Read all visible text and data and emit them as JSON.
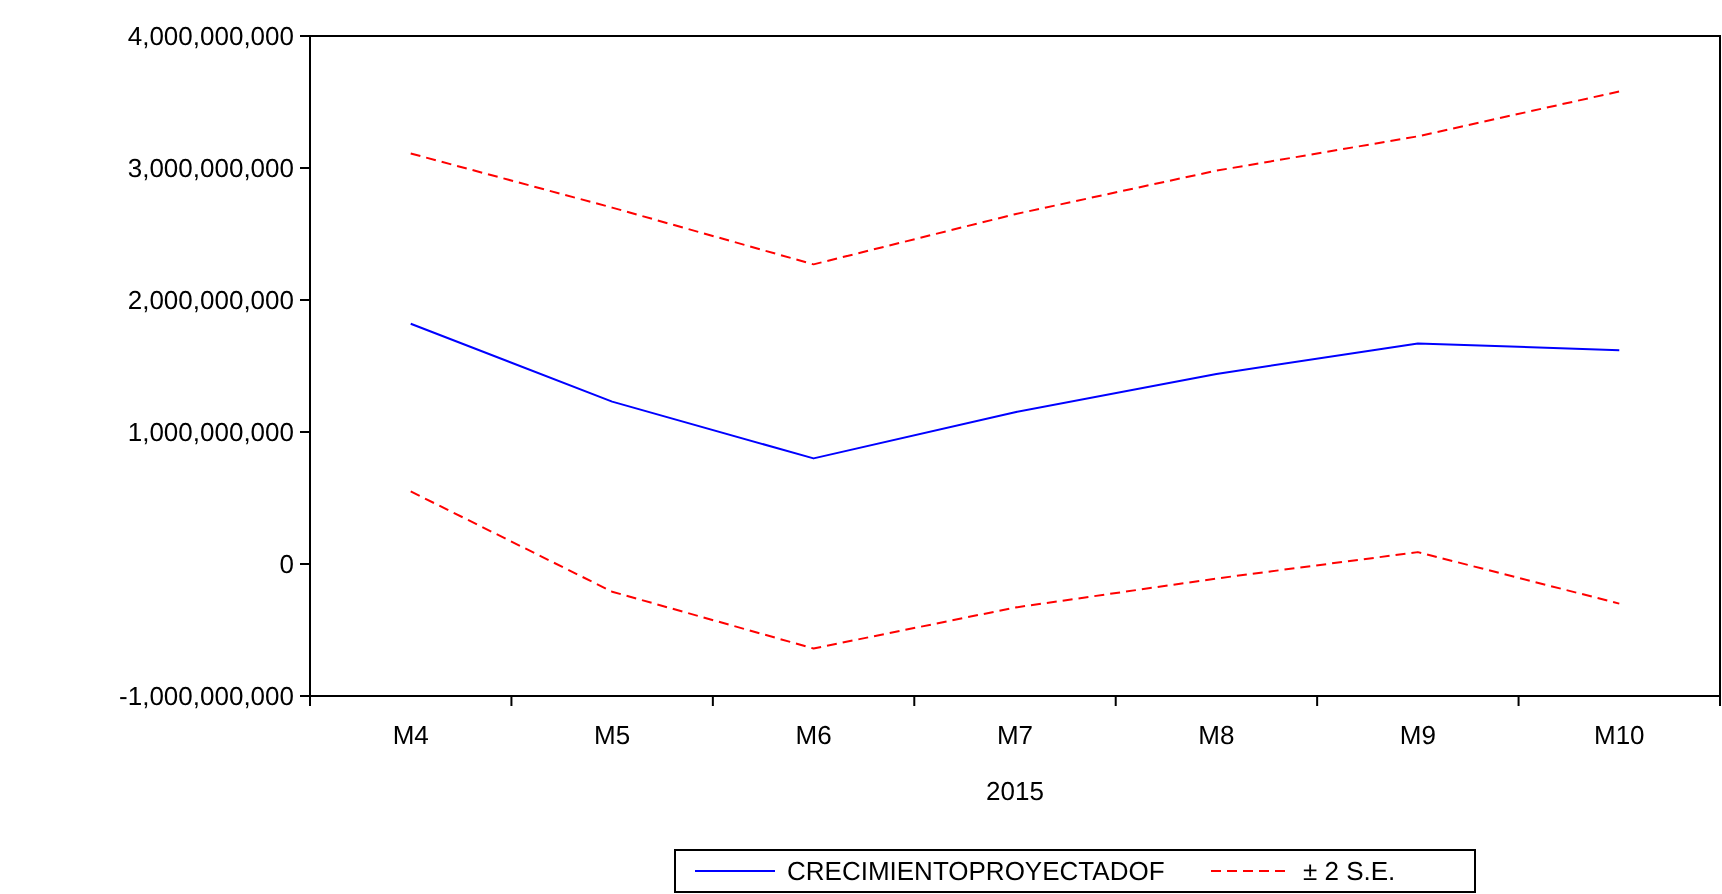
{
  "chart_data": {
    "type": "line",
    "xlabel": "2015",
    "categories": [
      "M4",
      "M5",
      "M6",
      "M7",
      "M8",
      "M9",
      "M10"
    ],
    "series": [
      {
        "name": "CRECIMIENTOPROYECTADOF",
        "color": "#0000ff",
        "line_style": "solid",
        "values": [
          1820000000,
          1230000000,
          800000000,
          1150000000,
          1440000000,
          1670000000,
          1620000000
        ]
      },
      {
        "name": "± 2 S.E.",
        "color": "#ff0000",
        "line_style": "dashed",
        "values": [
          3110000000,
          2700000000,
          2270000000,
          2650000000,
          2980000000,
          3240000000,
          3580000000
        ]
      },
      {
        "color": "#ff0000",
        "line_style": "dashed",
        "values": [
          550000000,
          -210000000,
          -640000000,
          -330000000,
          -110000000,
          90000000,
          -300000000
        ]
      }
    ],
    "ylim": [
      -1000000000,
      4000000000
    ],
    "yticks": [
      {
        "value": -1000000000,
        "label": "-1,000,000,000"
      },
      {
        "value": 0,
        "label": "0"
      },
      {
        "value": 1000000000,
        "label": "1,000,000,000"
      },
      {
        "value": 2000000000,
        "label": "2,000,000,000"
      },
      {
        "value": 3000000000,
        "label": "3,000,000,000"
      },
      {
        "value": 4000000000,
        "label": "4,000,000,000"
      }
    ],
    "grid": false,
    "legend": "bottom"
  }
}
